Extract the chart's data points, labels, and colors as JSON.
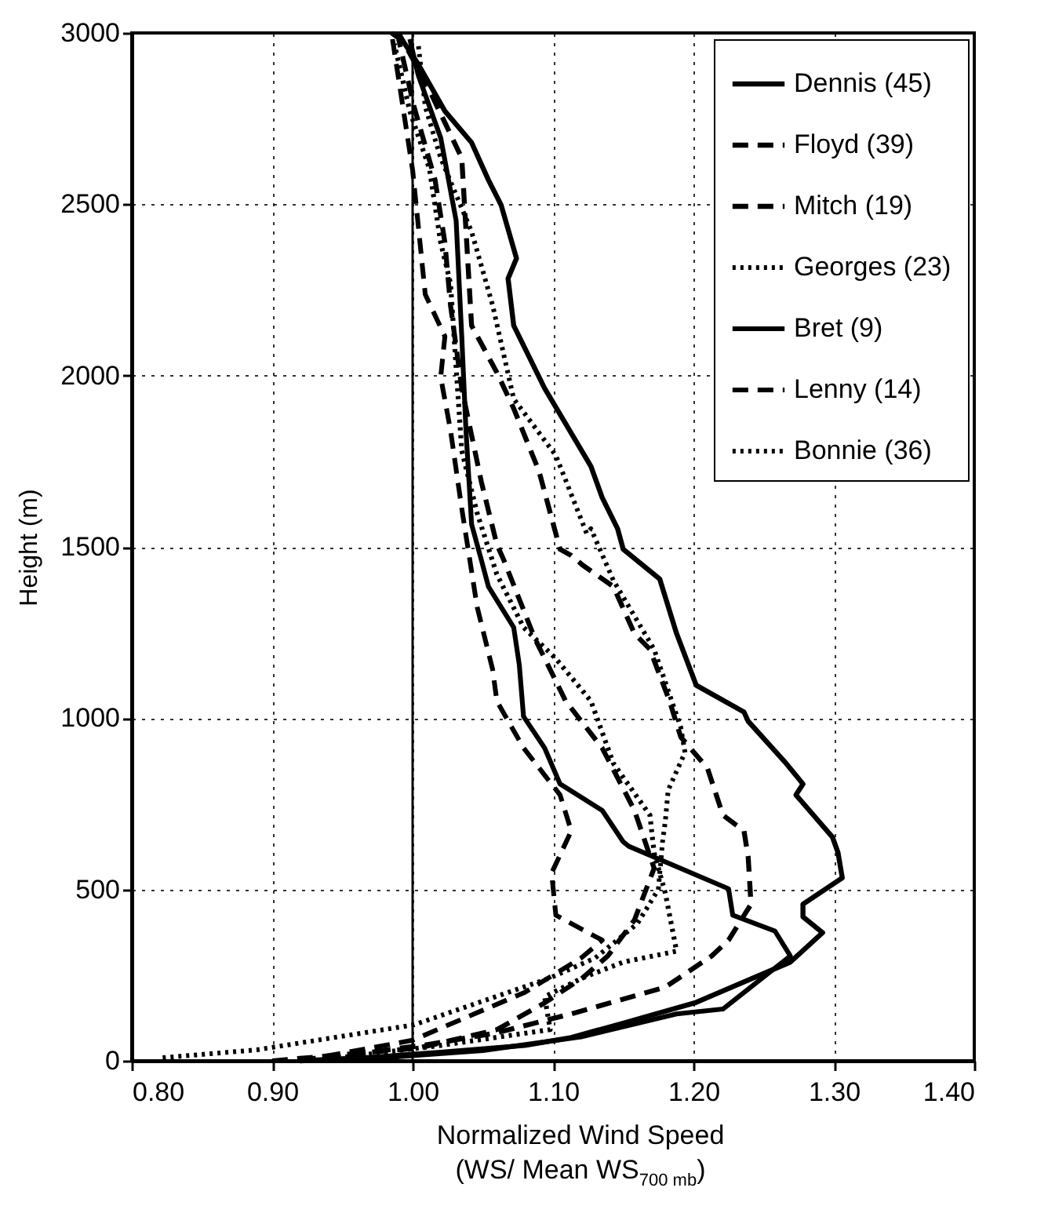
{
  "chart_data": {
    "type": "line",
    "xlabel": "Normalized Wind Speed\n(WS/ Mean WS$_{700 mb}$)",
    "ylabel": "Height (m)",
    "xlim": [
      0.8,
      1.4
    ],
    "xticks": [
      {
        "value": 0.8,
        "label": "0.80"
      },
      {
        "value": 0.9,
        "label": "0.90"
      },
      {
        "value": 1.0,
        "label": "1.00"
      },
      {
        "value": 1.1,
        "label": "1.10"
      },
      {
        "value": 1.2,
        "label": "1.20"
      },
      {
        "value": 1.3,
        "label": "1.30"
      },
      {
        "value": 1.4,
        "label": "1.40"
      }
    ],
    "ylim": [
      0,
      3000
    ],
    "yticks": [
      0,
      500,
      1000,
      1500,
      2000,
      2500,
      3000
    ],
    "grid": true,
    "legend": "top right",
    "ref_lines": [
      {
        "axis": "x",
        "value": 1.0,
        "color": "#000000",
        "line_style": "solid"
      }
    ],
    "series": [
      {
        "name": "Dennis (45)",
        "color": "#000000",
        "line_style": "solid",
        "x": [
          0.92,
          0.97,
          1.02,
          1.08,
          1.113,
          1.15,
          1.201,
          1.269,
          1.292,
          1.278,
          1.278,
          1.306,
          1.303,
          1.299,
          1.273,
          1.278,
          1.266,
          1.239,
          1.236,
          1.202,
          1.188,
          1.176,
          1.15,
          1.146,
          1.135,
          1.127,
          1.094,
          1.072,
          1.068,
          1.074,
          1.063,
          1.054,
          1.042,
          1.023,
          1.004,
          0.993,
          0.985
        ],
        "values": [
          0,
          10,
          25,
          45,
          68,
          110,
          169,
          288,
          374,
          420,
          457,
          534,
          607,
          653,
          776,
          808,
          868,
          991,
          1018,
          1096,
          1247,
          1406,
          1493,
          1553,
          1644,
          1735,
          1963,
          2146,
          2283,
          2342,
          2498,
          2571,
          2680,
          2772,
          2909,
          2977,
          3000
        ]
      },
      {
        "name": "Floyd (39)",
        "color": "#000000",
        "line_style": "dashed",
        "x": [
          0.92,
          1.009,
          1.06,
          1.113,
          1.18,
          1.213,
          1.225,
          1.241,
          1.239,
          1.236,
          1.221,
          1.21,
          1.191,
          1.183,
          1.169,
          1.158,
          1.143,
          1.121,
          1.113,
          1.105,
          1.09,
          1.072,
          1.06,
          1.042,
          1.035,
          1.01,
          0.99
        ],
        "values": [
          0,
          46,
          82,
          137,
          215,
          306,
          352,
          457,
          594,
          671,
          717,
          854,
          945,
          1050,
          1201,
          1247,
          1384,
          1447,
          1475,
          1493,
          1721,
          1904,
          2009,
          2146,
          2635,
          2850,
          3000
        ]
      },
      {
        "name": "Mitch (19)",
        "color": "#000000",
        "line_style": "dashed",
        "x": [
          0.9,
          1.004,
          1.06,
          1.094,
          1.121,
          1.139,
          1.158,
          1.172,
          1.158,
          1.135,
          1.109,
          1.087,
          1.065,
          1.06,
          1.049,
          1.035,
          1.027,
          1.023,
          1.016,
          1.001,
          0.99
        ],
        "values": [
          0,
          37,
          91,
          169,
          242,
          306,
          411,
          562,
          731,
          913,
          1050,
          1233,
          1461,
          1507,
          1689,
          1963,
          2205,
          2388,
          2571,
          2785,
          2982
        ]
      },
      {
        "name": "Georges (23)",
        "color": "#000000",
        "line_style": "dotted",
        "x": [
          0.93,
          1.02,
          1.098,
          1.094,
          1.121,
          1.15,
          1.188,
          1.18,
          1.172,
          1.169,
          1.143,
          1.127,
          1.102,
          1.079,
          1.06,
          1.046,
          1.035,
          1.031,
          1.027,
          1.02,
          1.012,
          0.998,
          0.987
        ],
        "values": [
          0,
          45,
          91,
          187,
          242,
          288,
          320,
          489,
          607,
          717,
          868,
          1050,
          1174,
          1265,
          1420,
          1598,
          1781,
          2023,
          2269,
          2388,
          2603,
          2772,
          2968
        ]
      },
      {
        "name": "Bret (9)",
        "color": "#000000",
        "line_style": "solid",
        "x": [
          0.95,
          1.05,
          1.12,
          1.188,
          1.221,
          1.269,
          1.258,
          1.228,
          1.225,
          1.154,
          1.15,
          1.135,
          1.105,
          1.094,
          1.079,
          1.076,
          1.072,
          1.054,
          1.049,
          1.042,
          1.038,
          1.035,
          1.031,
          1.02,
          1.004,
          0.998
        ],
        "values": [
          0,
          30,
          70,
          137,
          151,
          306,
          379,
          425,
          502,
          626,
          639,
          731,
          808,
          913,
          1005,
          1155,
          1265,
          1384,
          1461,
          1566,
          1840,
          2114,
          2452,
          2694,
          2877,
          2982
        ]
      },
      {
        "name": "Lenny (14)",
        "color": "#000000",
        "line_style": "dashed",
        "x": [
          0.92,
          1.0,
          1.08,
          1.12,
          1.135,
          1.102,
          1.099,
          1.113,
          1.105,
          1.079,
          1.06,
          1.057,
          1.046,
          1.035,
          1.027,
          1.02,
          1.023,
          1.009,
          1.0,
          0.985
        ],
        "values": [
          0,
          60,
          200,
          300,
          352,
          425,
          548,
          671,
          776,
          913,
          1050,
          1142,
          1324,
          1612,
          1840,
          1995,
          2114,
          2237,
          2600,
          3000
        ]
      },
      {
        "name": "Bonnie (36)",
        "color": "#000000",
        "line_style": "dotted",
        "x": [
          0.822,
          0.889,
          1.001,
          1.098,
          1.13,
          1.16,
          1.175,
          1.178,
          1.18,
          1.182,
          1.194,
          1.191,
          1.172,
          1.143,
          1.127,
          1.124,
          1.102,
          1.072,
          1.057,
          1.042,
          1.02,
          1.009,
          1.004
        ],
        "values": [
          9,
          32,
          105,
          242,
          300,
          400,
          500,
          639,
          700,
          790,
          900,
          973,
          1201,
          1402,
          1553,
          1539,
          1767,
          1932,
          2205,
          2420,
          2635,
          2785,
          2968
        ]
      }
    ]
  }
}
